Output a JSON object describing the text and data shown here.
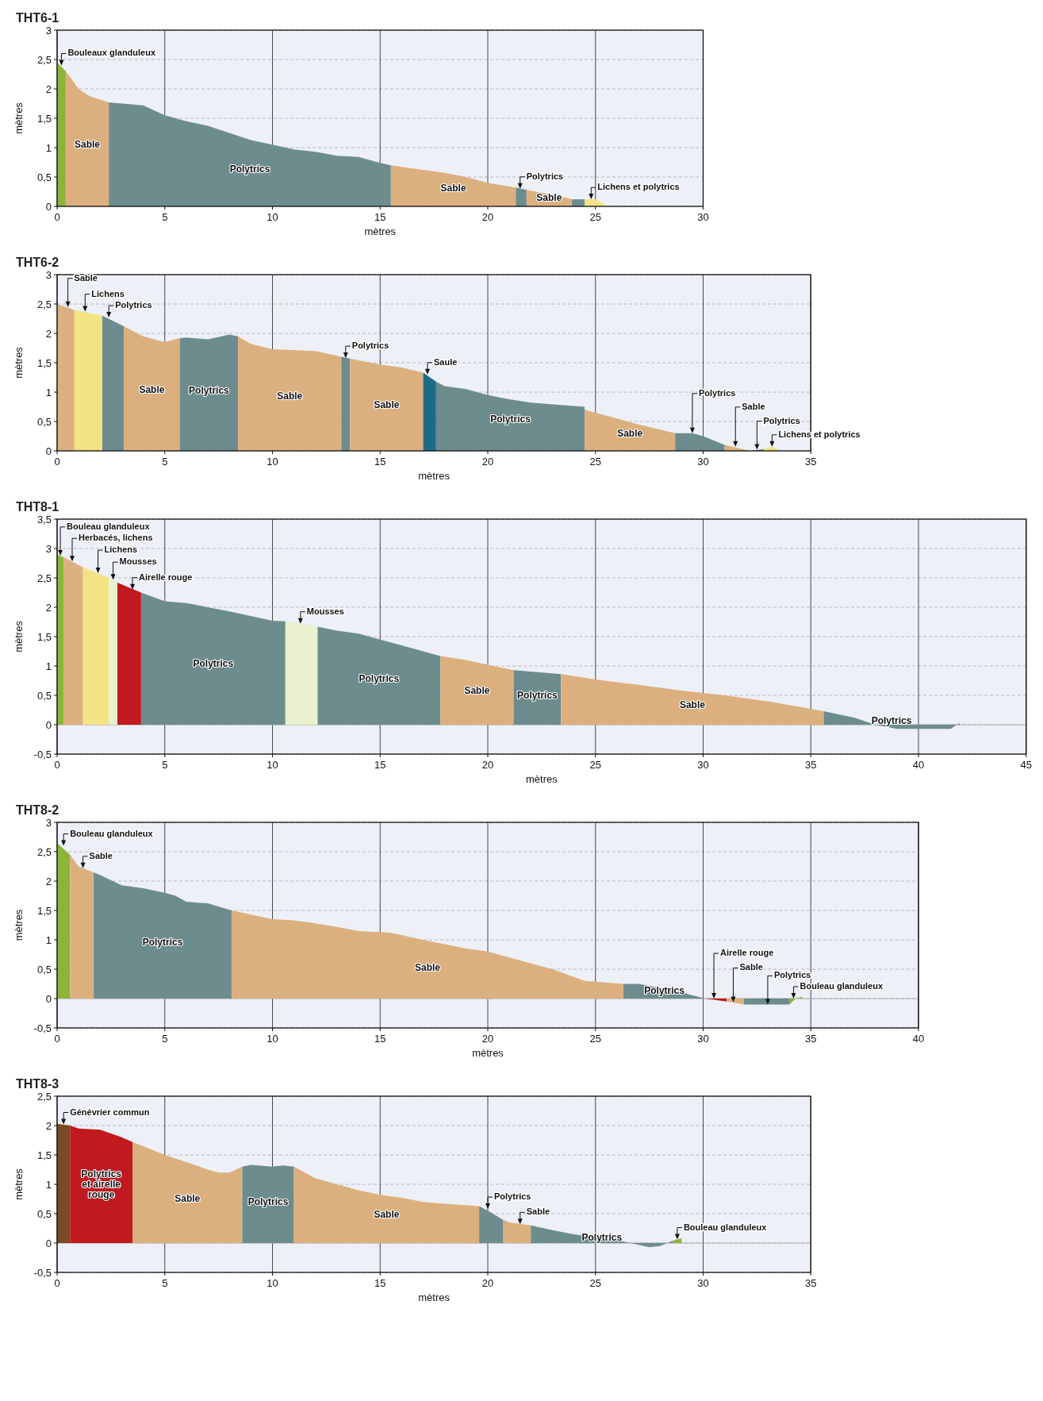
{
  "chart_data": [
    {
      "type": "area",
      "title": "THT6-1",
      "xlabel": "mètres",
      "ylabel": "mètres",
      "xlim": [
        0,
        30
      ],
      "ylim": [
        0,
        3
      ],
      "xticks": [
        0,
        5,
        10,
        15,
        20,
        25,
        30
      ],
      "yticks": [
        0,
        {
          "value": 0.5,
          "label": "0,5"
        },
        1,
        {
          "value": 1.5,
          "label": "1,5"
        },
        2,
        {
          "value": 2.5,
          "label": "2,5"
        },
        3
      ],
      "grid": true,
      "series": [
        {
          "color": "#8cb43a",
          "x": [
            0,
            0.4
          ],
          "values": [
            2.45,
            2.3
          ]
        },
        {
          "name": "Sable",
          "color": "#dcb07e",
          "x": [
            0.4,
            1,
            1.5,
            2.4
          ],
          "values": [
            2.3,
            2.0,
            1.88,
            1.77
          ]
        },
        {
          "name": "Polytrics",
          "color": "#6d8c8e",
          "x": [
            2.4,
            4,
            5,
            6,
            7,
            8,
            9,
            10,
            11,
            12,
            13,
            14,
            15,
            15.5
          ],
          "values": [
            1.77,
            1.72,
            1.55,
            1.45,
            1.37,
            1.25,
            1.13,
            1.05,
            0.97,
            0.93,
            0.86,
            0.84,
            0.74,
            0.7
          ]
        },
        {
          "name": "Sable",
          "color": "#dcb07e",
          "x": [
            15.5,
            17,
            18,
            19,
            20,
            21.3
          ],
          "values": [
            0.7,
            0.62,
            0.57,
            0.5,
            0.4,
            0.32
          ]
        },
        {
          "color": "#6d8c8e",
          "x": [
            21.3,
            21.8
          ],
          "values": [
            0.32,
            0.28
          ]
        },
        {
          "name": "Sable",
          "color": "#dcb07e",
          "x": [
            21.8,
            23,
            23.9
          ],
          "values": [
            0.28,
            0.2,
            0.12
          ]
        },
        {
          "color": "#6d8c8e",
          "x": [
            23.9,
            24.5
          ],
          "values": [
            0.12,
            0.12
          ]
        },
        {
          "color": "#f2e383",
          "x": [
            24.5,
            25,
            25.6
          ],
          "values": [
            0.12,
            0.12,
            0
          ]
        }
      ],
      "annotations": [
        {
          "text": "Bouleaux glanduleux",
          "x": 0.2,
          "y": 2.4
        },
        {
          "text": "Polytrics",
          "x": 21.5,
          "y": 0.3
        },
        {
          "text": "Lichens et polytrics",
          "x": 24.8,
          "y": 0.12
        }
      ]
    },
    {
      "type": "area",
      "title": "THT6-2",
      "xlabel": "mètres",
      "ylabel": "mètres",
      "xlim": [
        0,
        35
      ],
      "ylim": [
        0,
        3
      ],
      "xticks": [
        0,
        5,
        10,
        15,
        20,
        25,
        30,
        35
      ],
      "yticks": [
        0,
        {
          "value": 0.5,
          "label": "0,5"
        },
        1,
        {
          "value": 1.5,
          "label": "1,5"
        },
        2,
        {
          "value": 2.5,
          "label": "2,5"
        },
        3
      ],
      "grid": true,
      "series": [
        {
          "color": "#dcb07e",
          "x": [
            0,
            0.8
          ],
          "values": [
            2.5,
            2.4
          ]
        },
        {
          "color": "#f2e383",
          "x": [
            0.8,
            2.1
          ],
          "values": [
            2.4,
            2.3
          ]
        },
        {
          "color": "#6d8c8e",
          "x": [
            2.1,
            3.1
          ],
          "values": [
            2.3,
            2.12
          ]
        },
        {
          "name": "Sable",
          "color": "#dcb07e",
          "x": [
            3.1,
            4,
            5,
            5.7
          ],
          "values": [
            2.12,
            1.95,
            1.85,
            1.92
          ]
        },
        {
          "name": "Polytrics",
          "color": "#6d8c8e",
          "x": [
            5.7,
            6,
            7,
            8,
            8.4
          ],
          "values": [
            1.92,
            1.93,
            1.9,
            1.98,
            1.95
          ]
        },
        {
          "name": "Sable",
          "color": "#dcb07e",
          "x": [
            8.4,
            9,
            10,
            12,
            13.2
          ],
          "values": [
            1.95,
            1.82,
            1.73,
            1.7,
            1.6
          ]
        },
        {
          "color": "#6d8c8e",
          "x": [
            13.2,
            13.6
          ],
          "values": [
            1.6,
            1.57
          ]
        },
        {
          "name": "Sable",
          "color": "#dcb07e",
          "x": [
            13.6,
            15,
            16,
            17
          ],
          "values": [
            1.57,
            1.47,
            1.42,
            1.33
          ]
        },
        {
          "color": "#1d6b85",
          "x": [
            17,
            17.6
          ],
          "values": [
            1.33,
            1.18
          ]
        },
        {
          "name": "Polytrics",
          "color": "#6d8c8e",
          "x": [
            17.6,
            18,
            19,
            20,
            21,
            22,
            24.5
          ],
          "values": [
            1.18,
            1.1,
            1.05,
            0.95,
            0.88,
            0.82,
            0.75
          ]
        },
        {
          "name": "Sable",
          "color": "#dcb07e",
          "x": [
            24.5,
            26,
            27,
            28.7
          ],
          "values": [
            0.7,
            0.55,
            0.45,
            0.3
          ]
        },
        {
          "color": "#6d8c8e",
          "x": [
            28.7,
            29.5,
            30,
            31
          ],
          "values": [
            0.3,
            0.3,
            0.25,
            0.1
          ]
        },
        {
          "color": "#dcb07e",
          "x": [
            31,
            32.2
          ],
          "values": [
            0.1,
            0
          ]
        },
        {
          "color": "#6d8c8e",
          "x": [
            32.2,
            32.8
          ],
          "values": [
            0,
            0.03
          ]
        },
        {
          "color": "#f2e383",
          "x": [
            32.8,
            33.2,
            33.6
          ],
          "values": [
            0.03,
            0.07,
            0
          ]
        }
      ],
      "annotations": [
        {
          "text": "Sable",
          "x": 0.5,
          "y": 2.45
        },
        {
          "text": "Lichens",
          "x": 1.3,
          "y": 2.37
        },
        {
          "text": "Polytrics",
          "x": 2.4,
          "y": 2.27
        },
        {
          "text": "Polytrics",
          "x": 13.4,
          "y": 1.58
        },
        {
          "text": "Saule",
          "x": 17.2,
          "y": 1.3
        },
        {
          "text": "Polytrics",
          "x": 29.5,
          "y": 0.3
        },
        {
          "text": "Sable",
          "x": 31.5,
          "y": 0.07
        },
        {
          "text": "Polytrics",
          "x": 32.5,
          "y": 0.02
        },
        {
          "text": "Lichens et polytrics",
          "x": 33.2,
          "y": 0.07
        }
      ]
    },
    {
      "type": "area",
      "title": "THT8-1",
      "xlabel": "mètres",
      "ylabel": "mètres",
      "xlim": [
        0,
        45
      ],
      "ylim": [
        -0.5,
        3.5
      ],
      "xticks": [
        0,
        5,
        10,
        15,
        20,
        25,
        30,
        35,
        40,
        45
      ],
      "yticks": [
        {
          "value": -0.5,
          "label": "-0,5"
        },
        0,
        {
          "value": 0.5,
          "label": "0,5"
        },
        1,
        {
          "value": 1.5,
          "label": "1,5"
        },
        2,
        {
          "value": 2.5,
          "label": "2,5"
        },
        3,
        {
          "value": 3.5,
          "label": "3,5"
        }
      ],
      "grid": true,
      "ref_lines": [
        {
          "axis": "y",
          "value": 0,
          "color": "#b0b0b0"
        }
      ],
      "series": [
        {
          "color": "#8cb43a",
          "x": [
            0,
            0.3
          ],
          "values": [
            2.9,
            2.85
          ]
        },
        {
          "color": "#dcb07e",
          "x": [
            0.3,
            1.2
          ],
          "values": [
            2.85,
            2.68
          ]
        },
        {
          "color": "#f2e383",
          "x": [
            1.2,
            2.4
          ],
          "values": [
            2.68,
            2.5
          ]
        },
        {
          "color": "#e9f1cf",
          "x": [
            2.4,
            2.8
          ],
          "values": [
            2.5,
            2.42
          ]
        },
        {
          "color": "#c0191f",
          "x": [
            2.8,
            3.9
          ],
          "values": [
            2.42,
            2.25
          ]
        },
        {
          "name": "Polytrics",
          "color": "#6d8c8e",
          "x": [
            3.9,
            5,
            6,
            8,
            10,
            10.6
          ],
          "values": [
            2.25,
            2.1,
            2.07,
            1.93,
            1.77,
            1.76
          ]
        },
        {
          "color": "#e9f1cf",
          "x": [
            10.6,
            12.1
          ],
          "values": [
            1.76,
            1.67
          ]
        },
        {
          "name": "Polytrics",
          "color": "#6d8c8e",
          "x": [
            12.1,
            13,
            14,
            15,
            16,
            17.8
          ],
          "values": [
            1.67,
            1.6,
            1.55,
            1.45,
            1.35,
            1.17
          ]
        },
        {
          "name": "Sable",
          "color": "#dcb07e",
          "x": [
            17.8,
            19,
            20,
            21.2
          ],
          "values": [
            1.17,
            1.1,
            1.02,
            0.93
          ]
        },
        {
          "name": "Polytrics",
          "color": "#6d8c8e",
          "x": [
            21.2,
            23.4
          ],
          "values": [
            0.93,
            0.86
          ]
        },
        {
          "name": "Sable",
          "color": "#dcb07e",
          "x": [
            23.4,
            25,
            27,
            29,
            31,
            33,
            35.6
          ],
          "values": [
            0.86,
            0.77,
            0.68,
            0.58,
            0.5,
            0.4,
            0.23
          ]
        },
        {
          "name": "Polytrics",
          "color": "#6d8c8e",
          "x": [
            35.6,
            37,
            38,
            39,
            41.5,
            41.9
          ],
          "values": [
            0.23,
            0.12,
            0,
            -0.07,
            -0.07,
            0.03
          ]
        }
      ],
      "annotations": [
        {
          "text": "Bouleau glanduleux",
          "x": 0.15,
          "y": 2.88
        },
        {
          "text": "Herbacés, lichens",
          "x": 0.7,
          "y": 2.78
        },
        {
          "text": "Lichens",
          "x": 1.9,
          "y": 2.58
        },
        {
          "text": "Mousses",
          "x": 2.6,
          "y": 2.47
        },
        {
          "text": "Airelle rouge",
          "x": 3.5,
          "y": 2.3
        },
        {
          "text": "Mousses",
          "x": 11.3,
          "y": 1.72
        }
      ]
    },
    {
      "type": "area",
      "title": "THT8-2",
      "xlabel": "mètres",
      "ylabel": "mètres",
      "xlim": [
        0,
        40
      ],
      "ylim": [
        -0.5,
        3
      ],
      "xticks": [
        0,
        5,
        10,
        15,
        20,
        25,
        30,
        35,
        40
      ],
      "yticks": [
        {
          "value": -0.5,
          "label": "-0,5"
        },
        0,
        {
          "value": 0.5,
          "label": "0,5"
        },
        1,
        {
          "value": 1.5,
          "label": "1,5"
        },
        2,
        {
          "value": 2.5,
          "label": "2,5"
        },
        3
      ],
      "grid": true,
      "ref_lines": [
        {
          "axis": "y",
          "value": 0,
          "color": "#b0b0b0"
        }
      ],
      "series": [
        {
          "color": "#8cb43a",
          "x": [
            0,
            0.6
          ],
          "values": [
            2.65,
            2.45
          ]
        },
        {
          "color": "#dcb07e",
          "x": [
            0.6,
            1,
            1.7
          ],
          "values": [
            2.45,
            2.25,
            2.15
          ]
        },
        {
          "name": "Polytrics",
          "color": "#6d8c8e",
          "x": [
            1.7,
            2,
            3,
            4,
            5,
            5.5,
            6,
            7,
            8.1
          ],
          "values": [
            2.15,
            2.1,
            1.93,
            1.88,
            1.8,
            1.75,
            1.65,
            1.62,
            1.5
          ]
        },
        {
          "name": "Sable",
          "color": "#dcb07e",
          "x": [
            8.1,
            10,
            11,
            12,
            13,
            14,
            15.5,
            17,
            19,
            20,
            21,
            23,
            24.5,
            26.3
          ],
          "values": [
            1.5,
            1.35,
            1.33,
            1.28,
            1.22,
            1.15,
            1.12,
            1.0,
            0.85,
            0.8,
            0.7,
            0.5,
            0.3,
            0.25
          ]
        },
        {
          "name": "Polytrics",
          "color": "#6d8c8e",
          "x": [
            26.3,
            27,
            28.5,
            30.1
          ],
          "values": [
            0.25,
            0.25,
            0.15,
            0
          ]
        },
        {
          "color": "#c0191f",
          "x": [
            30.1,
            31.1
          ],
          "values": [
            0,
            -0.05
          ]
        },
        {
          "color": "#dcb07e",
          "x": [
            31.1,
            31.9
          ],
          "values": [
            -0.05,
            -0.1
          ]
        },
        {
          "color": "#6d8c8e",
          "x": [
            31.9,
            34
          ],
          "values": [
            -0.1,
            -0.1
          ]
        },
        {
          "color": "#8cb43a",
          "x": [
            34,
            34.3,
            34.6
          ],
          "values": [
            -0.1,
            0,
            0.03
          ]
        }
      ],
      "annotations": [
        {
          "text": "Bouleau glanduleux",
          "x": 0.3,
          "y": 2.6
        },
        {
          "text": "Sable",
          "x": 1.2,
          "y": 2.22
        },
        {
          "text": "Airelle rouge",
          "x": 30.5,
          "y": 0
        },
        {
          "text": "Sable",
          "x": 31.4,
          "y": -0.06
        },
        {
          "text": "Polytrics",
          "x": 33,
          "y": -0.1
        },
        {
          "text": "Bouleau glanduleux",
          "x": 34.2,
          "y": 0
        }
      ]
    },
    {
      "type": "area",
      "title": "THT8-3",
      "xlabel": "mètres",
      "ylabel": "mètres",
      "xlim": [
        0,
        35
      ],
      "ylim": [
        -0.5,
        2.5
      ],
      "xticks": [
        0,
        5,
        10,
        15,
        20,
        25,
        30,
        35
      ],
      "yticks": [
        {
          "value": -0.5,
          "label": "-0,5"
        },
        0,
        {
          "value": 0.5,
          "label": "0,5"
        },
        1,
        {
          "value": 1.5,
          "label": "1,5"
        },
        2,
        {
          "value": 2.5,
          "label": "2,5"
        }
      ],
      "grid": true,
      "ref_lines": [
        {
          "axis": "y",
          "value": 0,
          "color": "#b0b0b0"
        }
      ],
      "series": [
        {
          "color": "#7a4a25",
          "x": [
            0,
            0.6
          ],
          "values": [
            2.03,
            2.0
          ]
        },
        {
          "name": "Polytrics et airelle rouge",
          "color": "#c0191f",
          "x": [
            0.6,
            1,
            2,
            3,
            3.5
          ],
          "values": [
            2.0,
            1.95,
            1.93,
            1.8,
            1.72
          ]
        },
        {
          "name": "Sable",
          "color": "#dcb07e",
          "x": [
            3.5,
            4,
            5,
            6,
            7,
            7.5,
            8,
            8.6
          ],
          "values": [
            1.72,
            1.65,
            1.5,
            1.38,
            1.25,
            1.2,
            1.2,
            1.3
          ]
        },
        {
          "name": "Polytrics",
          "color": "#6d8c8e",
          "x": [
            8.6,
            9,
            10,
            10.5,
            11
          ],
          "values": [
            1.3,
            1.33,
            1.3,
            1.32,
            1.3
          ]
        },
        {
          "name": "Sable",
          "color": "#dcb07e",
          "x": [
            11,
            12,
            13,
            14,
            15,
            16,
            17,
            18,
            19.6
          ],
          "values": [
            1.3,
            1.1,
            1.0,
            0.9,
            0.82,
            0.77,
            0.7,
            0.67,
            0.63
          ]
        },
        {
          "color": "#6d8c8e",
          "x": [
            19.6,
            20,
            20.7
          ],
          "values": [
            0.63,
            0.55,
            0.4
          ]
        },
        {
          "color": "#dcb07e",
          "x": [
            20.7,
            21,
            22
          ],
          "values": [
            0.4,
            0.35,
            0.3
          ]
        },
        {
          "name": "Polytrics",
          "color": "#6d8c8e",
          "x": [
            22,
            23,
            24,
            25,
            26,
            27.5,
            28,
            28.6
          ],
          "values": [
            0.3,
            0.22,
            0.15,
            0.1,
            0.05,
            -0.07,
            -0.05,
            0.04
          ]
        },
        {
          "color": "#8cb43a",
          "x": [
            28.6,
            29
          ],
          "values": [
            0.04,
            0.08
          ]
        }
      ],
      "annotations": [
        {
          "text": "Génévrier commun",
          "x": 0.3,
          "y": 2.02
        },
        {
          "text": "Polytrics",
          "x": 20,
          "y": 0.58
        },
        {
          "text": "Sable",
          "x": 21.5,
          "y": 0.32
        },
        {
          "text": "Bouleau glanduleux",
          "x": 28.8,
          "y": 0.06
        }
      ]
    }
  ]
}
